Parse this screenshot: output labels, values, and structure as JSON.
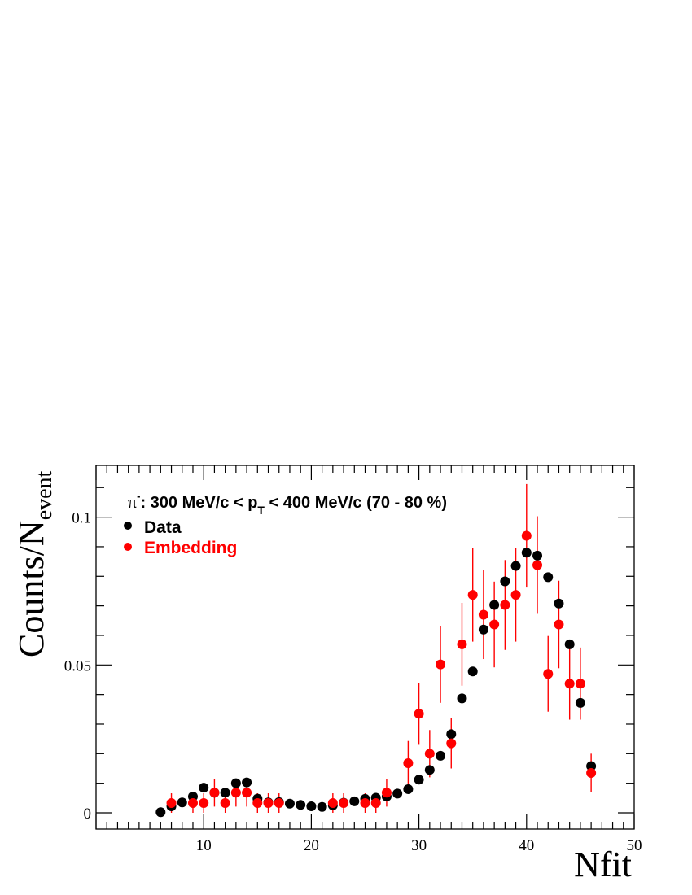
{
  "chart_data": {
    "type": "scatter",
    "xlabel": "Nfit",
    "ylabel_main": "Counts/N",
    "ylabel_sub": "event",
    "xlim": [
      0,
      50
    ],
    "ylim": [
      -0.0055,
      0.1175
    ],
    "xticks": [
      10,
      20,
      30,
      40,
      50
    ],
    "yticks": [
      0,
      0.05,
      0.1
    ],
    "ytick_labels": [
      "0",
      "0.05",
      "0.1"
    ],
    "grid": false,
    "annotation": {
      "particle": "π",
      "charge": "-",
      "text_before_sub": ": 300 MeV/c < p",
      "sub": "T",
      "text_after_sub": " < 400 MeV/c (70 - 80 %)"
    },
    "legend_position": "top-left",
    "series": [
      {
        "name": "Data",
        "color": "#000000",
        "x": [
          6,
          7,
          8,
          9,
          10,
          11,
          12,
          13,
          14,
          15,
          16,
          17,
          18,
          19,
          20,
          21,
          22,
          23,
          24,
          25,
          26,
          27,
          28,
          29,
          30,
          31,
          32,
          33,
          34,
          35,
          36,
          37,
          38,
          39,
          40,
          41,
          42,
          43,
          44,
          45,
          46
        ],
        "y": [
          0.0002,
          0.0022,
          0.0035,
          0.0055,
          0.0085,
          0.0068,
          0.0068,
          0.01,
          0.0103,
          0.0048,
          0.0035,
          0.0036,
          0.0031,
          0.0027,
          0.0022,
          0.002,
          0.0025,
          0.0034,
          0.0039,
          0.0047,
          0.0051,
          0.0055,
          0.0065,
          0.008,
          0.0112,
          0.0145,
          0.0193,
          0.0266,
          0.0387,
          0.0478,
          0.062,
          0.0703,
          0.0783,
          0.0835,
          0.088,
          0.087,
          0.0797,
          0.0708,
          0.057,
          0.0372,
          0.0158
        ],
        "yerr": [
          0,
          0,
          0,
          0,
          0,
          0,
          0,
          0,
          0,
          0,
          0,
          0,
          0,
          0,
          0,
          0,
          0,
          0,
          0,
          0,
          0,
          0,
          0,
          0,
          0,
          0,
          0,
          0,
          0,
          0,
          0,
          0,
          0,
          0,
          0,
          0,
          0,
          0,
          0,
          0,
          0
        ]
      },
      {
        "name": "Embedding",
        "color": "#ff0000",
        "x": [
          7,
          9,
          10,
          11,
          12,
          13,
          14,
          15,
          16,
          17,
          22,
          23,
          25,
          26,
          27,
          29,
          30,
          31,
          32,
          33,
          34,
          35,
          36,
          37,
          38,
          39,
          40,
          41,
          42,
          43,
          44,
          45,
          46
        ],
        "y": [
          0.0033,
          0.0033,
          0.0033,
          0.0068,
          0.0033,
          0.0068,
          0.0068,
          0.0033,
          0.0033,
          0.0033,
          0.0033,
          0.0033,
          0.0033,
          0.0033,
          0.0068,
          0.0168,
          0.0335,
          0.02,
          0.0502,
          0.0235,
          0.057,
          0.0737,
          0.067,
          0.0637,
          0.0703,
          0.0737,
          0.0937,
          0.0838,
          0.047,
          0.0637,
          0.0437,
          0.0437,
          0.0135
        ],
        "yerr": [
          0.0033,
          0.0033,
          0.0033,
          0.0047,
          0.0033,
          0.0047,
          0.0047,
          0.0033,
          0.0033,
          0.0033,
          0.0033,
          0.0033,
          0.0033,
          0.0033,
          0.0047,
          0.0075,
          0.0105,
          0.008,
          0.013,
          0.0085,
          0.014,
          0.0158,
          0.015,
          0.0145,
          0.0152,
          0.0158,
          0.0175,
          0.0165,
          0.0128,
          0.0148,
          0.0122,
          0.0122,
          0.0065
        ]
      }
    ]
  }
}
